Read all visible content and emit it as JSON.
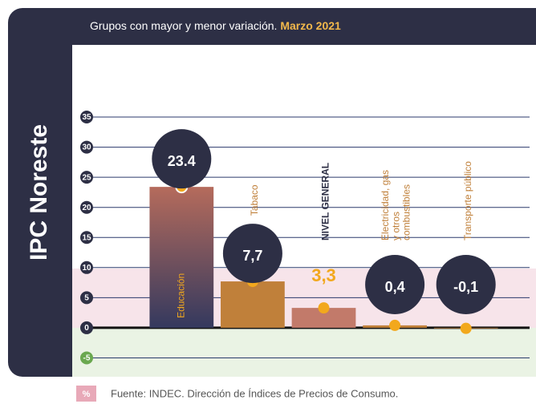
{
  "chart_data": {
    "type": "bar",
    "side_title": "IPC Noreste",
    "title": "Grupos con mayor y menor variación.",
    "title_highlight": "Marzo 2021",
    "categories": [
      "Educación",
      "Tabaco",
      "NIVEL GENERAL",
      "Electricidad, gas y otros combustibles",
      "Transporte público"
    ],
    "values": [
      23.4,
      7.7,
      3.3,
      0.4,
      -0.1
    ],
    "value_labels": [
      "23.4",
      "7,7",
      "3,3",
      "0,4",
      "-0,1"
    ],
    "colors": [
      "#b56b5c",
      "#c0803a",
      "#c27a6a",
      "#c0803a",
      "#c0803a"
    ],
    "highlight_index": 2,
    "ylim": [
      -8,
      46
    ],
    "yticks": [
      -5,
      0,
      5,
      10,
      15,
      20,
      25,
      30,
      35
    ],
    "grid": true,
    "source_badge": "%",
    "source": "Fuente: INDEC. Dirección de Índices de Precios de Consumo."
  }
}
